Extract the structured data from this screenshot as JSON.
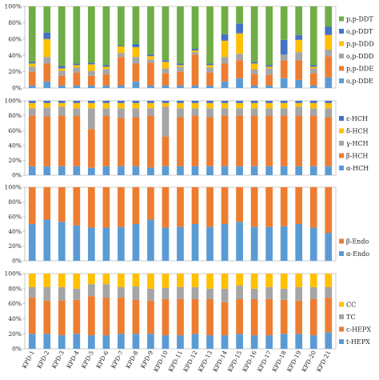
{
  "colors": {
    "blue": "#5b9bd5",
    "orange": "#ed7d31",
    "gray": "#a5a5a5",
    "yellow": "#ffc000",
    "darkblue": "#4472c4",
    "green": "#70ad47"
  },
  "chart_data": [
    {
      "type": "bar",
      "stacked": true,
      "categories": [
        "KPD-1",
        "KPD-2",
        "KPD-3",
        "KPD-4",
        "KPD-5",
        "KPD-6",
        "KPD-7",
        "KPD-8",
        "KPD-9",
        "KPD-10",
        "KPD-11",
        "KPD-12",
        "KPD-13",
        "KPD-14",
        "KPD-15",
        "KPD-16",
        "KPD-17",
        "KPD-18",
        "KPD-19",
        "KPD-20",
        "KPD-21"
      ],
      "yticks": [
        "0%",
        "20%",
        "40%",
        "60%",
        "80%",
        "100%"
      ],
      "ylim": [
        0,
        100
      ],
      "legend_position": "right",
      "series": [
        {
          "name": "o,p-DDE",
          "color": "blue",
          "values": [
            3,
            8,
            3,
            3,
            3,
            3,
            3,
            8,
            3,
            3,
            3,
            3,
            3,
            8,
            12,
            3,
            3,
            12,
            10,
            3,
            13
          ]
        },
        {
          "name": "p,p-DDE",
          "color": "orange",
          "values": [
            17,
            22,
            12,
            16,
            12,
            14,
            35,
            22,
            28,
            15,
            17,
            38,
            16,
            22,
            22,
            14,
            13,
            22,
            24,
            15,
            26
          ]
        },
        {
          "name": "o,p-DDD",
          "color": "gray",
          "values": [
            6,
            8,
            6,
            6,
            6,
            6,
            5,
            8,
            4,
            6,
            6,
            3,
            6,
            8,
            8,
            6,
            8,
            7,
            10,
            6,
            8
          ]
        },
        {
          "name": "p,p-DDD",
          "color": "yellow",
          "values": [
            4,
            22,
            3,
            3,
            8,
            3,
            8,
            12,
            4,
            8,
            2,
            2,
            3,
            20,
            25,
            7,
            2,
            0,
            15,
            2,
            18
          ]
        },
        {
          "name": "o,p-DDT",
          "color": "darkblue",
          "values": [
            2,
            8,
            3,
            2,
            2,
            2,
            1,
            4,
            2,
            2,
            2,
            2,
            2,
            8,
            12,
            2,
            2,
            18,
            6,
            2,
            10
          ]
        },
        {
          "name": "p,p-DDT",
          "color": "green",
          "values": [
            68,
            32,
            73,
            70,
            69,
            72,
            48,
            46,
            59,
            66,
            70,
            52,
            70,
            34,
            21,
            68,
            72,
            41,
            35,
            72,
            25
          ]
        }
      ]
    },
    {
      "type": "bar",
      "stacked": true,
      "categories": [
        "KPD-1",
        "KPD-2",
        "KPD-3",
        "KPD-4",
        "KPD-5",
        "KPD-6",
        "KPD-7",
        "KPD-8",
        "KPD-9",
        "KPD-10",
        "KPD-11",
        "KPD-12",
        "KPD-13",
        "KPD-14",
        "KPD-15",
        "KPD-16",
        "KPD-17",
        "KPD-18",
        "KPD-19",
        "KPD-20",
        "KPD-21"
      ],
      "yticks": [
        "0%",
        "20%",
        "40%",
        "60%",
        "80%",
        "100%"
      ],
      "ylim": [
        0,
        100
      ],
      "legend_position": "right",
      "series": [
        {
          "name": "α-HCH",
          "color": "blue",
          "values": [
            12,
            12,
            12,
            12,
            10,
            12,
            12,
            12,
            10,
            12,
            12,
            12,
            12,
            12,
            12,
            12,
            12,
            12,
            12,
            12,
            12
          ]
        },
        {
          "name": "β-HCH",
          "color": "orange",
          "values": [
            68,
            67,
            68,
            68,
            52,
            68,
            65,
            66,
            70,
            40,
            66,
            68,
            66,
            68,
            68,
            68,
            68,
            68,
            68,
            68,
            66
          ]
        },
        {
          "name": "γ-HCH",
          "color": "gray",
          "values": [
            10,
            12,
            12,
            10,
            28,
            10,
            13,
            12,
            10,
            40,
            12,
            10,
            12,
            10,
            10,
            10,
            10,
            10,
            12,
            10,
            12
          ]
        },
        {
          "name": "δ-HCH",
          "color": "yellow",
          "values": [
            7,
            6,
            5,
            7,
            7,
            7,
            7,
            7,
            7,
            5,
            7,
            7,
            7,
            7,
            7,
            7,
            7,
            7,
            5,
            7,
            7
          ]
        },
        {
          "name": "ε-HCH",
          "color": "darkblue",
          "values": [
            3,
            3,
            3,
            3,
            3,
            3,
            3,
            3,
            3,
            3,
            3,
            3,
            3,
            3,
            3,
            3,
            3,
            3,
            3,
            3,
            3
          ]
        }
      ]
    },
    {
      "type": "bar",
      "stacked": true,
      "categories": [
        "KPD-1",
        "KPD-2",
        "KPD-3",
        "KPD-4",
        "KPD-5",
        "KPD-6",
        "KPD-7",
        "KPD-8",
        "KPD-9",
        "KPD-10",
        "KPD-11",
        "KPD-12",
        "KPD-13",
        "KPD-14",
        "KPD-15",
        "KPD-16",
        "KPD-17",
        "KPD-18",
        "KPD-19",
        "KPD-20",
        "KPD-21"
      ],
      "yticks": [
        "0%",
        "20%",
        "40%",
        "60%",
        "80%",
        "100%"
      ],
      "ylim": [
        0,
        100
      ],
      "legend_position": "right",
      "series": [
        {
          "name": "α-Endo",
          "color": "blue",
          "values": [
            50,
            56,
            53,
            48,
            45,
            45,
            46,
            50,
            56,
            45,
            46,
            50,
            46,
            50,
            53,
            46,
            46,
            47,
            50,
            45,
            38
          ]
        },
        {
          "name": "β-Endo",
          "color": "orange",
          "values": [
            50,
            44,
            47,
            52,
            55,
            55,
            54,
            50,
            44,
            55,
            54,
            50,
            54,
            50,
            47,
            54,
            54,
            53,
            50,
            55,
            62
          ]
        }
      ]
    },
    {
      "type": "bar",
      "stacked": true,
      "categories": [
        "KPD-1",
        "KPD-2",
        "KPD-3",
        "KPD-4",
        "KPD-5",
        "KPD-6",
        "KPD-7",
        "KPD-8",
        "KPD-9",
        "KPD-10",
        "KPD-11",
        "KPD-12",
        "KPD-13",
        "KPD-14",
        "KPD-15",
        "KPD-16",
        "KPD-17",
        "KPD-18",
        "KPD-19",
        "KPD-20",
        "KPD-21"
      ],
      "yticks": [
        "0%",
        "20%",
        "40%",
        "60%",
        "80%",
        "100%"
      ],
      "ylim": [
        0,
        100
      ],
      "legend_position": "right",
      "series": [
        {
          "name": "t-HEPX",
          "color": "blue",
          "values": [
            20,
            20,
            18,
            20,
            18,
            18,
            20,
            20,
            20,
            18,
            18,
            20,
            18,
            18,
            20,
            18,
            18,
            20,
            20,
            18,
            22
          ]
        },
        {
          "name": "c-HEPX",
          "color": "orange",
          "values": [
            48,
            44,
            46,
            45,
            52,
            50,
            48,
            45,
            44,
            48,
            48,
            46,
            48,
            44,
            46,
            48,
            48,
            45,
            44,
            48,
            46
          ]
        },
        {
          "name": "TC",
          "color": "gray",
          "values": [
            14,
            18,
            18,
            15,
            16,
            18,
            14,
            18,
            16,
            15,
            16,
            16,
            14,
            18,
            18,
            14,
            16,
            15,
            18,
            16,
            14
          ]
        },
        {
          "name": "CC",
          "color": "yellow",
          "values": [
            18,
            18,
            18,
            20,
            14,
            14,
            18,
            17,
            20,
            19,
            18,
            18,
            20,
            20,
            16,
            20,
            18,
            20,
            18,
            18,
            18
          ]
        }
      ]
    }
  ]
}
